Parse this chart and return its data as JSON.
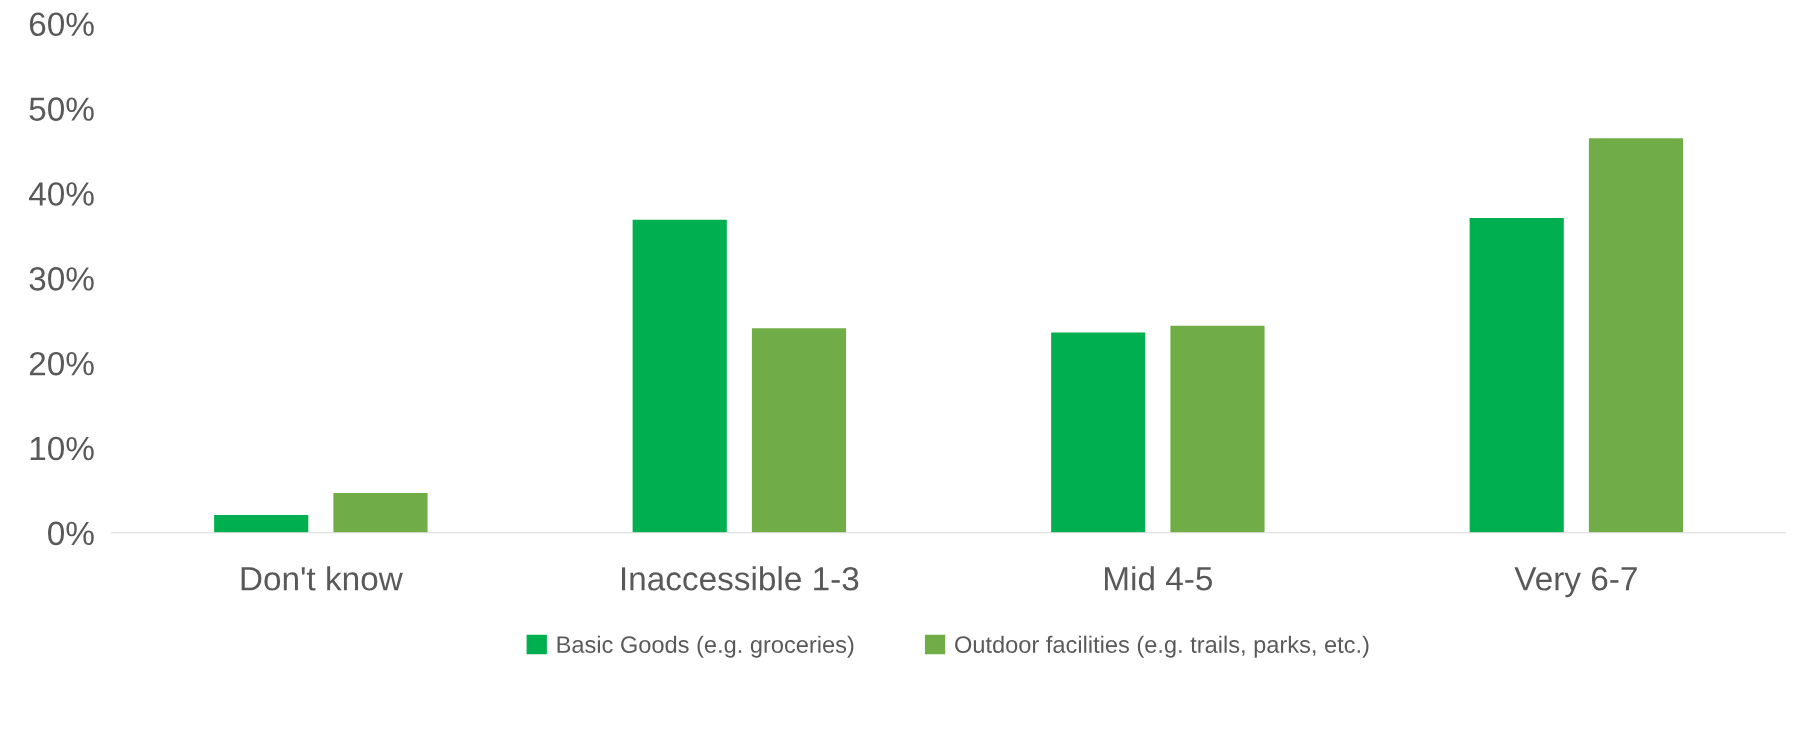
{
  "chart_data": {
    "type": "bar",
    "categories": [
      "Don't know",
      "Inaccessible 1-3",
      "Mid 4-5",
      "Very 6-7"
    ],
    "series": [
      {
        "name": "Basic Goods (e.g. groceries)",
        "color": "#00b050",
        "values": [
          2.1,
          36.9,
          23.6,
          37.1
        ]
      },
      {
        "name": "Outdoor facilities (e.g. trails, parks, etc.)",
        "color": "#70ad47",
        "values": [
          4.7,
          24.1,
          24.4,
          46.5
        ]
      }
    ],
    "ylim": [
      0,
      60
    ],
    "yticks": [
      {
        "value": 0,
        "label": "0%"
      },
      {
        "value": 10,
        "label": "10%"
      },
      {
        "value": 20,
        "label": "20%"
      },
      {
        "value": 30,
        "label": "30%"
      },
      {
        "value": 40,
        "label": "40%"
      },
      {
        "value": 50,
        "label": "50%"
      },
      {
        "value": 60,
        "label": "60%"
      }
    ],
    "grid": false,
    "legend": "bottom"
  }
}
